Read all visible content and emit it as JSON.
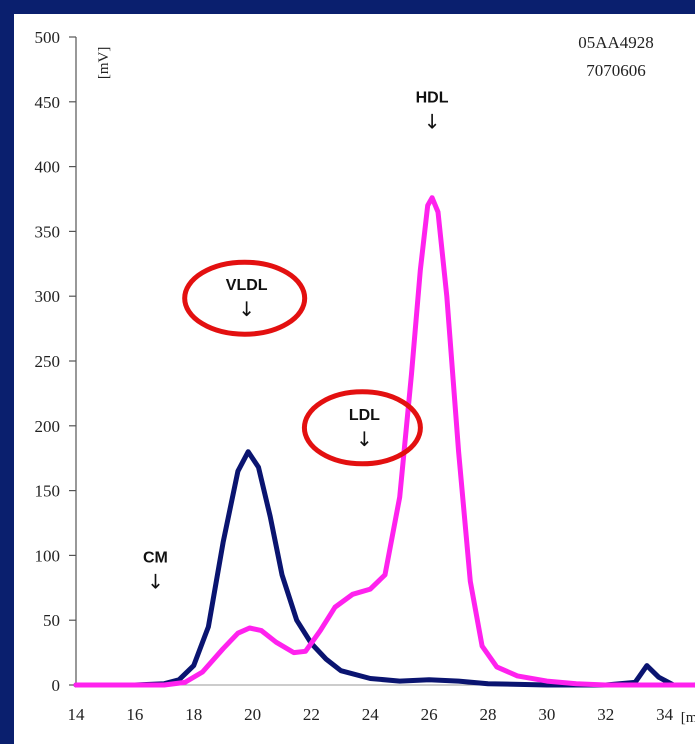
{
  "chart_data": {
    "type": "line",
    "title": "",
    "xlabel": "[min]",
    "ylabel": "[mV]",
    "xlim": [
      14,
      35
    ],
    "ylim": [
      0,
      500
    ],
    "x_ticks": [
      "14",
      "16",
      "18",
      "20",
      "22",
      "24",
      "26",
      "28",
      "30",
      "32",
      "34"
    ],
    "y_ticks": [
      "0",
      "50",
      "100",
      "150",
      "200",
      "250",
      "300",
      "350",
      "400",
      "450",
      "500"
    ],
    "sample_id": [
      "05AA4928",
      "7070606"
    ],
    "series": [
      {
        "color": "#0a1470",
        "points": [
          [
            14,
            0
          ],
          [
            16,
            0
          ],
          [
            17,
            1
          ],
          [
            17.5,
            4
          ],
          [
            18,
            15
          ],
          [
            18.5,
            45
          ],
          [
            19,
            110
          ],
          [
            19.5,
            165
          ],
          [
            19.85,
            180
          ],
          [
            20.2,
            168
          ],
          [
            20.6,
            130
          ],
          [
            21,
            85
          ],
          [
            21.5,
            50
          ],
          [
            22,
            32
          ],
          [
            22.5,
            20
          ],
          [
            23,
            11
          ],
          [
            24,
            5
          ],
          [
            25,
            3
          ],
          [
            26,
            4
          ],
          [
            27,
            3
          ],
          [
            28,
            1
          ],
          [
            30,
            0
          ],
          [
            32,
            0
          ],
          [
            33,
            2
          ],
          [
            33.4,
            15
          ],
          [
            33.8,
            6
          ],
          [
            34.3,
            0
          ],
          [
            35,
            0
          ]
        ]
      },
      {
        "color": "#ff22ee",
        "points": [
          [
            14,
            0
          ],
          [
            16,
            0
          ],
          [
            17,
            0
          ],
          [
            17.7,
            2
          ],
          [
            18.3,
            10
          ],
          [
            19,
            28
          ],
          [
            19.5,
            40
          ],
          [
            19.9,
            44
          ],
          [
            20.3,
            42
          ],
          [
            20.8,
            33
          ],
          [
            21.4,
            25
          ],
          [
            21.8,
            26
          ],
          [
            22.3,
            42
          ],
          [
            22.8,
            60
          ],
          [
            23.4,
            70
          ],
          [
            24,
            74
          ],
          [
            24.5,
            85
          ],
          [
            25,
            145
          ],
          [
            25.4,
            240
          ],
          [
            25.7,
            320
          ],
          [
            25.95,
            370
          ],
          [
            26.1,
            376
          ],
          [
            26.3,
            365
          ],
          [
            26.6,
            300
          ],
          [
            27,
            180
          ],
          [
            27.4,
            80
          ],
          [
            27.8,
            30
          ],
          [
            28.3,
            14
          ],
          [
            29,
            7
          ],
          [
            30,
            3
          ],
          [
            31,
            1
          ],
          [
            32,
            0
          ],
          [
            35,
            0
          ]
        ]
      }
    ],
    "annotations": [
      {
        "label": "HDL",
        "x": 26.1,
        "y": 445,
        "circled": false
      },
      {
        "label": "VLDL",
        "x": 19.8,
        "y": 300,
        "circled": true
      },
      {
        "label": "LDL",
        "x": 23.8,
        "y": 200,
        "circled": true
      },
      {
        "label": "CM",
        "x": 16.7,
        "y": 90,
        "circled": false
      }
    ],
    "grid": false,
    "legend": "none"
  }
}
